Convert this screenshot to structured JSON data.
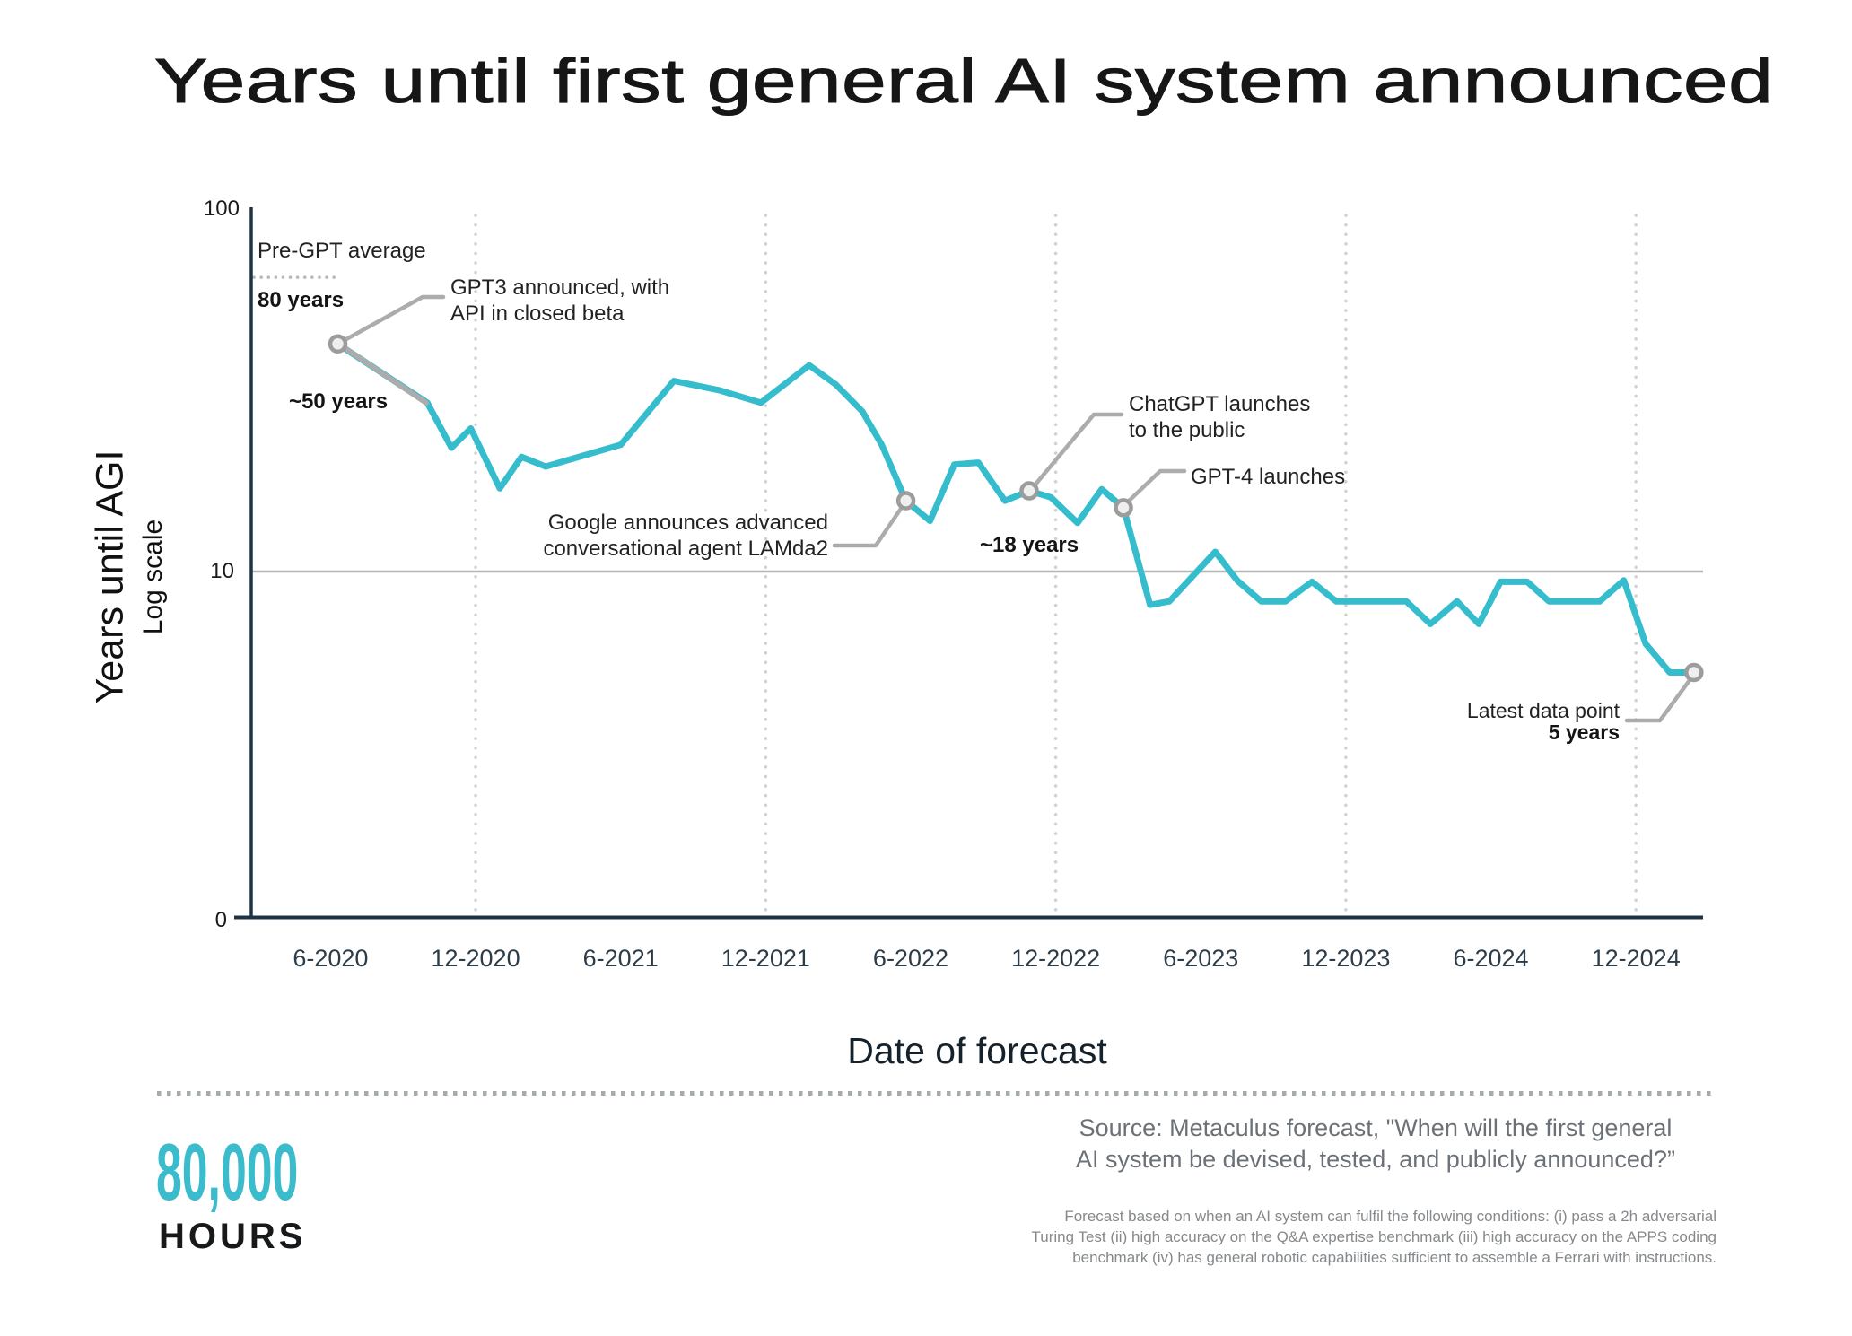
{
  "title": "Years until first general AI system announced",
  "y_axis": {
    "title": "Years until AGI",
    "subtitle": "Log scale",
    "ticks": [
      "100",
      "10",
      "0"
    ]
  },
  "x_axis": {
    "title": "Date of forecast",
    "ticks": [
      "6-2020",
      "12-2020",
      "6-2021",
      "12-2021",
      "6-2022",
      "12-2022",
      "6-2023",
      "12-2023",
      "6-2024",
      "12-2024"
    ]
  },
  "chart_data": {
    "type": "line",
    "title": "Years until first general AI system announced",
    "xlabel": "Date of forecast",
    "ylabel": "Years until AGI (log scale)",
    "x_unit": "months since 2020-03",
    "x_tick_months": [
      3,
      9,
      15,
      21,
      27,
      33,
      39,
      45,
      51,
      57
    ],
    "log_scale": true,
    "ylim_displayed": [
      "0",
      "100"
    ],
    "series": [
      {
        "name": "Metaculus forecast of years until AGI",
        "color": "#35bdcd",
        "points": [
          [
            3.3,
            50
          ],
          [
            7.0,
            33
          ],
          [
            8.0,
            24
          ],
          [
            8.8,
            27.5
          ],
          [
            10.0,
            18
          ],
          [
            10.9,
            22.5
          ],
          [
            11.9,
            21
          ],
          [
            15.0,
            24.5
          ],
          [
            17.2,
            38.5
          ],
          [
            19.1,
            36
          ],
          [
            20.8,
            33
          ],
          [
            22.8,
            43
          ],
          [
            23.9,
            37.5
          ],
          [
            25.0,
            31
          ],
          [
            25.8,
            24.5
          ],
          [
            26.8,
            16.5
          ],
          [
            27.8,
            14.3
          ],
          [
            28.8,
            21.3
          ],
          [
            29.8,
            21.6
          ],
          [
            30.9,
            16.5
          ],
          [
            31.9,
            17.7
          ],
          [
            32.8,
            16.9
          ],
          [
            33.9,
            14.1
          ],
          [
            34.9,
            17.9
          ],
          [
            35.8,
            15.7
          ],
          [
            36.9,
            7.9
          ],
          [
            37.7,
            8.1
          ],
          [
            39.6,
            11.5
          ],
          [
            40.5,
            9.4
          ],
          [
            41.5,
            8.1
          ],
          [
            42.5,
            8.1
          ],
          [
            43.6,
            9.3
          ],
          [
            44.6,
            8.1
          ],
          [
            47.5,
            8.1
          ],
          [
            48.5,
            6.9
          ],
          [
            49.6,
            8.1
          ],
          [
            50.5,
            6.9
          ],
          [
            51.4,
            9.3
          ],
          [
            52.5,
            9.3
          ],
          [
            53.4,
            8.1
          ],
          [
            55.5,
            8.1
          ],
          [
            56.5,
            9.4
          ],
          [
            57.4,
            6.0
          ],
          [
            58.4,
            4.9
          ],
          [
            59.4,
            4.9
          ]
        ]
      }
    ],
    "marker_indices": [
      0,
      15,
      20,
      24,
      44
    ],
    "gridlines": {
      "horizontal_at": 10,
      "vertical_at_months": [
        9,
        21,
        33,
        45,
        57
      ],
      "pre_gpt_average_value": 80
    }
  },
  "annotations": {
    "pre_gpt_label": "Pre-GPT average",
    "pre_gpt_value": "80 years",
    "gpt3_line1": "GPT3 announced, with",
    "gpt3_line2": "API in closed beta",
    "gpt3_value": "~50 years",
    "google_line1": "Google announces advanced",
    "google_line2": "conversational agent LAMda2",
    "chatgpt_line1": "ChatGPT launches",
    "chatgpt_line2": "to the public",
    "chatgpt_value": "~18 years",
    "gpt4_label": "GPT-4 launches",
    "latest_label": "Latest data point",
    "latest_value": "5 years"
  },
  "footer": {
    "logo_top": "80,000",
    "logo_bottom": "HOURS",
    "source_lines": [
      "Source: Metaculus forecast, \"When will the first general",
      "AI system be devised, tested, and publicly announced?”"
    ],
    "footnote_lines": [
      "Forecast based on when an AI system can fulfil the following conditions: (i) pass a 2h adversarial",
      "Turing Test (ii) high accuracy on the Q&A expertise benchmark (iii) high accuracy on the APPS coding",
      "benchmark (iv) has general robotic capabilities sufficient to assemble a Ferrari with instructions."
    ]
  },
  "colors": {
    "line": "#35bdcd",
    "axis": "#1e3444",
    "grid_dots": "#cfd2d4",
    "ten_line": "#b5b5b5",
    "pre_gpt_dotted": "#b9b9b9",
    "marker_stroke": "#9c9c9c",
    "marker_fill": "#efefef",
    "leader": "#acacac",
    "logo_teal": "#3abccd",
    "source_text": "#6b7176",
    "footnote_text": "#85898c"
  }
}
